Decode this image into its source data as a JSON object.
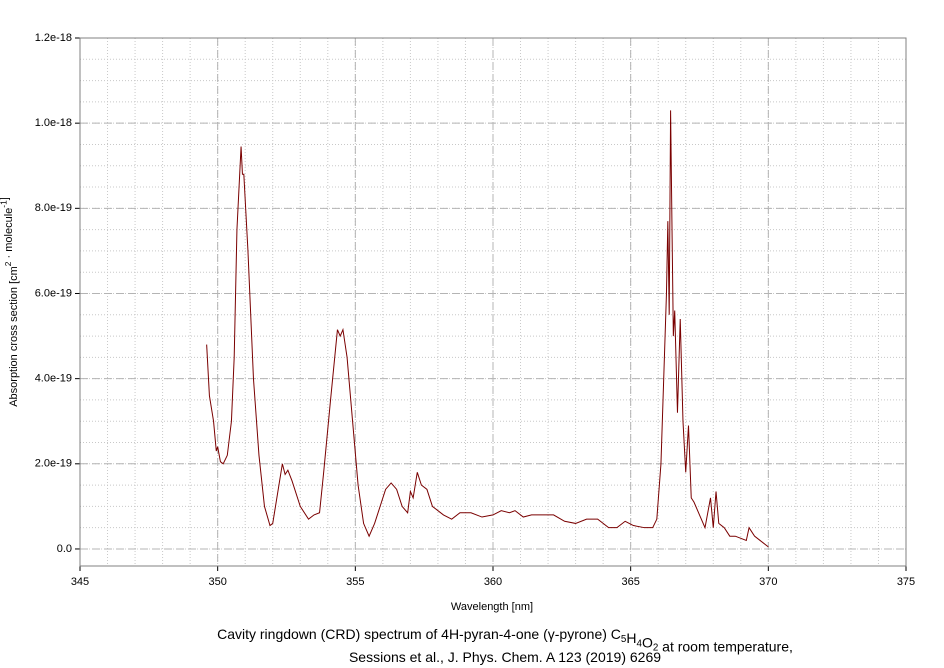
{
  "chart_data": {
    "type": "line",
    "xlabel": "Wavelength [nm]",
    "ylabel_parts": [
      "Absorption cross section [cm",
      {
        "sup": "2"
      },
      " · molecule",
      {
        "sup": "-1"
      },
      "]"
    ],
    "caption_lines": [
      [
        "Cavity ringdown (CRD) spectrum of 4H-pyran-4-one (",
        "γ",
        "-pyrone) C",
        {
          "sub": "5"
        },
        "H",
        {
          "sub": "4"
        },
        "O",
        {
          "sub": "2"
        },
        " at room temperature,"
      ],
      [
        "Sessions et al.,  J. Phys. Chem. A 123 (2019) 6269"
      ]
    ],
    "xlim": [
      345,
      375
    ],
    "xticks": [
      345,
      350,
      355,
      360,
      365,
      370,
      375
    ],
    "ylim": [
      -4e-20,
      1.2e-18
    ],
    "yticks": [
      {
        "value": 0,
        "label": "0.0"
      },
      {
        "value": 2e-19,
        "label": "2.0e-19"
      },
      {
        "value": 4e-19,
        "label": "4.0e-19"
      },
      {
        "value": 6e-19,
        "label": "6.0e-19"
      },
      {
        "value": 8e-19,
        "label": "8.0e-19"
      },
      {
        "value": 1e-18,
        "label": "1.0e-18"
      },
      {
        "value": 1.2e-18,
        "label": "1.2e-18"
      }
    ],
    "grid": true,
    "x_minor_step": 1,
    "y_minor_step": 5e-20,
    "series": [
      {
        "color": "#7a0000",
        "x": [
          349.6,
          349.7,
          349.85,
          349.95,
          350.0,
          350.1,
          350.2,
          350.35,
          350.5,
          350.6,
          350.7,
          350.8,
          350.85,
          350.9,
          350.95,
          351.1,
          351.3,
          351.5,
          351.7,
          351.9,
          352.0,
          352.2,
          352.35,
          352.45,
          352.55,
          352.7,
          353.0,
          353.3,
          353.5,
          353.7,
          353.85,
          354.1,
          354.35,
          354.45,
          354.55,
          354.7,
          354.9,
          355.1,
          355.3,
          355.5,
          355.7,
          355.9,
          356.1,
          356.3,
          356.5,
          356.7,
          356.9,
          357.0,
          357.1,
          357.25,
          357.4,
          357.6,
          357.8,
          358.2,
          358.5,
          358.8,
          359.2,
          359.6,
          360.0,
          360.3,
          360.6,
          360.8,
          361.1,
          361.4,
          361.8,
          362.2,
          362.6,
          363.0,
          363.4,
          363.8,
          364.2,
          364.5,
          364.8,
          365.1,
          365.5,
          365.8,
          365.95,
          366.1,
          366.2,
          366.3,
          366.35,
          366.4,
          366.45,
          366.5,
          366.55,
          366.6,
          366.7,
          366.8,
          366.9,
          367.0,
          367.1,
          367.2,
          367.3,
          367.5,
          367.7,
          367.9,
          368.0,
          368.1,
          368.2,
          368.4,
          368.6,
          368.8,
          369.0,
          369.2,
          369.3,
          369.5,
          369.7,
          369.9,
          370.0
        ],
        "values": [
          4.8e-19,
          3.6e-19,
          3e-19,
          2.3e-19,
          2.4e-19,
          2.05e-19,
          2e-19,
          2.2e-19,
          3e-19,
          4.5e-19,
          7.5e-19,
          8.8e-19,
          9.45e-19,
          8.8e-19,
          8.8e-19,
          7e-19,
          4e-19,
          2.2e-19,
          1e-19,
          5.5e-20,
          6e-20,
          1.4e-19,
          2e-19,
          1.75e-19,
          1.85e-19,
          1.6e-19,
          1e-19,
          7e-20,
          8e-20,
          8.5e-20,
          1.8e-19,
          3.5e-19,
          5.15e-19,
          5e-19,
          5.15e-19,
          4.5e-19,
          3e-19,
          1.5e-19,
          6e-20,
          3e-20,
          6e-20,
          1e-19,
          1.4e-19,
          1.55e-19,
          1.4e-19,
          1e-19,
          8.5e-20,
          1.35e-19,
          1.2e-19,
          1.8e-19,
          1.5e-19,
          1.4e-19,
          1e-19,
          8e-20,
          7e-20,
          8.5e-20,
          8.5e-20,
          7.5e-20,
          8e-20,
          9e-20,
          8.5e-20,
          9e-20,
          7.5e-20,
          8e-20,
          8e-20,
          8e-20,
          6.5e-20,
          6e-20,
          7e-20,
          7e-20,
          5e-20,
          5e-20,
          6.5e-20,
          5.5e-20,
          5e-20,
          5e-20,
          7e-20,
          2e-19,
          4e-19,
          6e-19,
          7.7e-19,
          5.5e-19,
          1.03e-18,
          7.6e-19,
          5e-19,
          5.6e-19,
          3.2e-19,
          5.4e-19,
          3e-19,
          1.8e-19,
          2.9e-19,
          1.2e-19,
          1.1e-19,
          8e-20,
          5e-20,
          1.2e-19,
          5e-20,
          1.35e-19,
          6e-20,
          5e-20,
          3e-20,
          3e-20,
          2.5e-20,
          2e-20,
          5e-20,
          3e-20,
          2e-20,
          1e-20,
          5e-21
        ]
      }
    ]
  }
}
